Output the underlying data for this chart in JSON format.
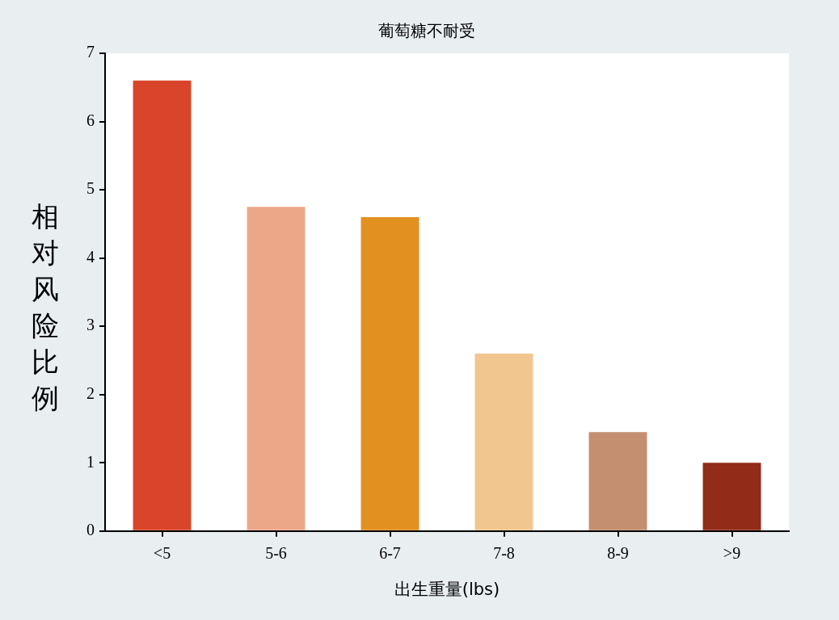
{
  "chart_data": {
    "type": "bar",
    "title": "葡萄糖不耐受",
    "xlabel": "出生重量(lbs)",
    "ylabel": "相对风险比例",
    "categories": [
      "<5",
      "5-6",
      "6-7",
      "7-8",
      "8-9",
      ">9"
    ],
    "values": [
      6.6,
      4.75,
      4.6,
      2.6,
      1.45,
      1.0
    ],
    "colors": [
      "#d9452a",
      "#eca789",
      "#e2901f",
      "#f2c68f",
      "#c48f70",
      "#922b17"
    ],
    "ylim": [
      0,
      7
    ],
    "yticks": [
      0,
      1,
      2,
      3,
      4,
      5,
      6,
      7
    ],
    "grid": false,
    "legend": false
  }
}
